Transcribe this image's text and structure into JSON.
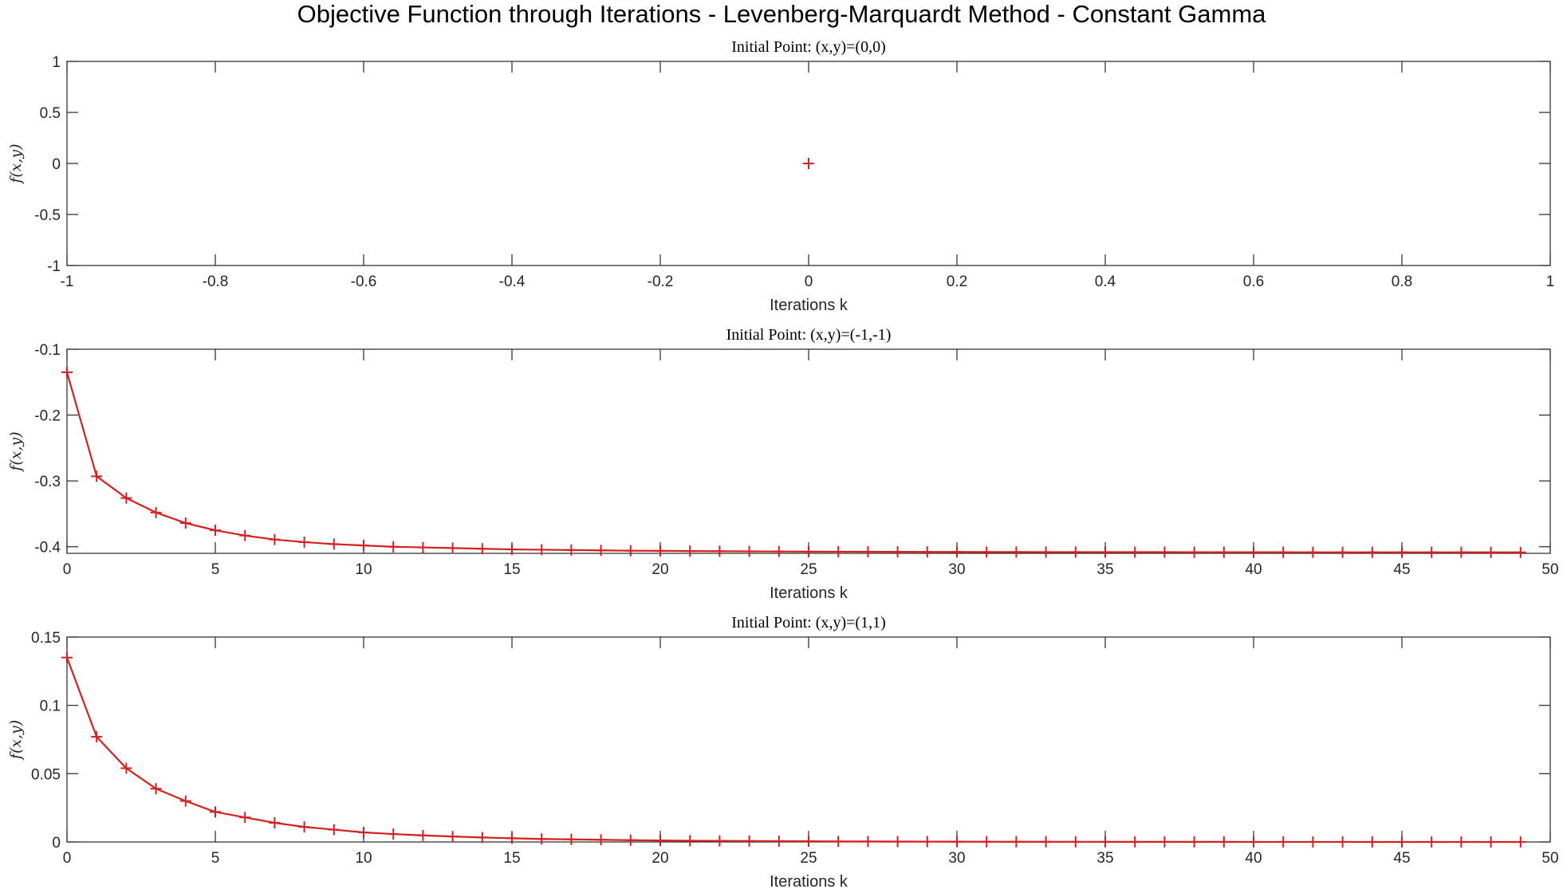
{
  "title": "Objective Function through Iterations - Levenberg-Marquardt Method - Constant Gamma",
  "colors": {
    "series": "#d62020",
    "axis": "#262626"
  },
  "chart_data": [
    {
      "type": "line",
      "title": "Initial Point: (x,y)=(0,0)",
      "xlabel": "Iterations k",
      "ylabel": "f(x,y)",
      "xlim": [
        -1,
        1
      ],
      "ylim": [
        -1,
        1
      ],
      "xticks": [
        -1,
        -0.8,
        -0.6,
        -0.4,
        -0.2,
        0,
        0.2,
        0.4,
        0.6,
        0.8,
        1
      ],
      "xtick_labels": [
        "-1",
        "-0.8",
        "-0.6",
        "-0.4",
        "-0.2",
        "0",
        "0.2",
        "0.4",
        "0.6",
        "0.8",
        "1"
      ],
      "yticks": [
        -1,
        -0.5,
        0,
        0.5,
        1
      ],
      "ytick_labels": [
        "-1",
        "-0.5",
        "0",
        "0.5",
        "1"
      ],
      "marker": "+",
      "x": [
        0
      ],
      "y": [
        0
      ]
    },
    {
      "type": "line",
      "title": "Initial Point: (x,y)=(-1,-1)",
      "xlabel": "Iterations k",
      "ylabel": "f(x,y)",
      "xlim": [
        0,
        50
      ],
      "ylim": [
        -0.41,
        -0.1
      ],
      "xticks": [
        0,
        5,
        10,
        15,
        20,
        25,
        30,
        35,
        40,
        45,
        50
      ],
      "xtick_labels": [
        "0",
        "5",
        "10",
        "15",
        "20",
        "25",
        "30",
        "35",
        "40",
        "45",
        "50"
      ],
      "yticks": [
        -0.4,
        -0.3,
        -0.2,
        -0.1
      ],
      "ytick_labels": [
        "-0.4",
        "-0.3",
        "-0.2",
        "-0.1"
      ],
      "marker": "+",
      "x": [
        0,
        1,
        2,
        3,
        4,
        5,
        6,
        7,
        8,
        9,
        10,
        11,
        12,
        13,
        14,
        15,
        16,
        17,
        18,
        19,
        20,
        21,
        22,
        23,
        24,
        25,
        26,
        27,
        28,
        29,
        30,
        31,
        32,
        33,
        34,
        35,
        36,
        37,
        38,
        39,
        40,
        41,
        42,
        43,
        44,
        45,
        46,
        47,
        48,
        49
      ],
      "y": [
        -0.135,
        -0.293,
        -0.326,
        -0.348,
        -0.364,
        -0.375,
        -0.383,
        -0.389,
        -0.393,
        -0.396,
        -0.398,
        -0.4,
        -0.401,
        -0.402,
        -0.403,
        -0.404,
        -0.4045,
        -0.405,
        -0.4055,
        -0.406,
        -0.4062,
        -0.4065,
        -0.4068,
        -0.407,
        -0.4072,
        -0.4074,
        -0.4075,
        -0.4076,
        -0.4077,
        -0.4078,
        -0.4079,
        -0.408,
        -0.408,
        -0.4081,
        -0.4081,
        -0.4082,
        -0.4082,
        -0.4082,
        -0.4083,
        -0.4083,
        -0.4083,
        -0.4083,
        -0.4084,
        -0.4084,
        -0.4084,
        -0.4084,
        -0.4084,
        -0.4084,
        -0.4085,
        -0.4085
      ]
    },
    {
      "type": "line",
      "title": "Initial Point: (x,y)=(1,1)",
      "xlabel": "Iterations k",
      "ylabel": "f(x,y)",
      "xlim": [
        0,
        50
      ],
      "ylim": [
        0,
        0.15
      ],
      "xticks": [
        0,
        5,
        10,
        15,
        20,
        25,
        30,
        35,
        40,
        45,
        50
      ],
      "xtick_labels": [
        "0",
        "5",
        "10",
        "15",
        "20",
        "25",
        "30",
        "35",
        "40",
        "45",
        "50"
      ],
      "yticks": [
        0,
        0.05,
        0.1,
        0.15
      ],
      "ytick_labels": [
        "0",
        "0.05",
        "0.1",
        "0.15"
      ],
      "marker": "+",
      "x": [
        0,
        1,
        2,
        3,
        4,
        5,
        6,
        7,
        8,
        9,
        10,
        11,
        12,
        13,
        14,
        15,
        16,
        17,
        18,
        19,
        20,
        21,
        22,
        23,
        24,
        25,
        26,
        27,
        28,
        29,
        30,
        31,
        32,
        33,
        34,
        35,
        36,
        37,
        38,
        39,
        40,
        41,
        42,
        43,
        44,
        45,
        46,
        47,
        48,
        49
      ],
      "y": [
        0.135,
        0.077,
        0.054,
        0.039,
        0.03,
        0.022,
        0.018,
        0.014,
        0.011,
        0.009,
        0.007,
        0.0058,
        0.0048,
        0.004,
        0.0033,
        0.0027,
        0.0022,
        0.0019,
        0.0016,
        0.0013,
        0.0011,
        0.0009,
        0.0008,
        0.0007,
        0.0006,
        0.0005,
        0.0004,
        0.00035,
        0.0003,
        0.00025,
        0.0002,
        0.00018,
        0.00015,
        0.00013,
        0.00011,
        0.0001,
        8e-05,
        7e-05,
        6e-05,
        5e-05,
        4e-05,
        4e-05,
        3e-05,
        3e-05,
        2e-05,
        2e-05,
        2e-05,
        1e-05,
        1e-05,
        1e-05
      ]
    }
  ]
}
